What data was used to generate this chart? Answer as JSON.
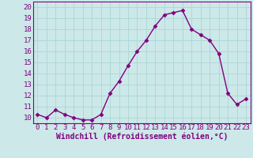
{
  "x": [
    0,
    1,
    2,
    3,
    4,
    5,
    6,
    7,
    8,
    9,
    10,
    11,
    12,
    13,
    14,
    15,
    16,
    17,
    18,
    19,
    20,
    21,
    22,
    23
  ],
  "y": [
    10.3,
    10.0,
    10.7,
    10.3,
    10.0,
    9.8,
    9.8,
    10.3,
    12.2,
    13.3,
    14.7,
    16.0,
    17.0,
    18.3,
    19.3,
    19.5,
    19.7,
    18.0,
    17.5,
    17.0,
    15.8,
    12.2,
    11.2,
    11.7
  ],
  "line_color": "#800080",
  "marker": "D",
  "marker_size": 2.5,
  "bg_color": "#cce8e8",
  "grid_color": "#b0d8d8",
  "xlabel": "Windchill (Refroidissement éolien,°C)",
  "xlabel_color": "#800080",
  "tick_color": "#800080",
  "ylim": [
    9.5,
    20.5
  ],
  "xlim": [
    -0.5,
    23.5
  ],
  "yticks": [
    10,
    11,
    12,
    13,
    14,
    15,
    16,
    17,
    18,
    19,
    20
  ],
  "xticks": [
    0,
    1,
    2,
    3,
    4,
    5,
    6,
    7,
    8,
    9,
    10,
    11,
    12,
    13,
    14,
    15,
    16,
    17,
    18,
    19,
    20,
    21,
    22,
    23
  ],
  "font_size": 6.5,
  "xlabel_fontsize": 7,
  "linewidth": 1.0
}
